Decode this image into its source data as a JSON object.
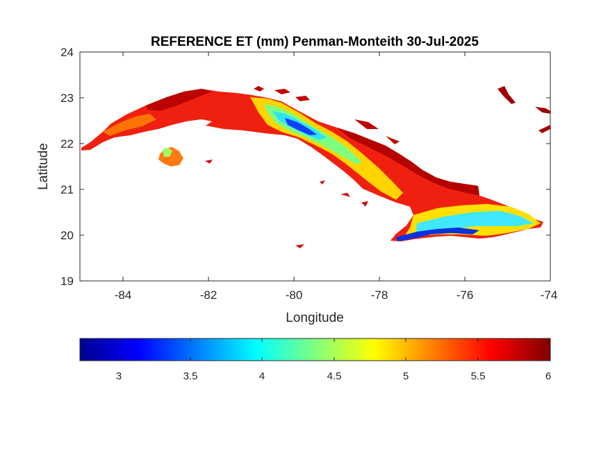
{
  "map": {
    "title": "REFERENCE ET (mm) Penman-Monteith 30-Jul-2025",
    "xlabel": "Longitude",
    "ylabel": "Latitude",
    "x_ticks": [
      "-84",
      "-82",
      "-80",
      "-78",
      "-76",
      "-74"
    ],
    "y_ticks": [
      "24",
      "23",
      "22",
      "21",
      "20",
      "19"
    ],
    "xlim": [
      -85,
      -74
    ],
    "ylim": [
      19,
      24
    ],
    "colorbar_ticks": [
      "3",
      "3.5",
      "4",
      "4.5",
      "5",
      "5.5",
      "6"
    ],
    "colorbar_range": [
      2.73,
      6.0
    ],
    "colormap": "jet"
  },
  "chart_data": {
    "type": "heatmap",
    "title": "REFERENCE ET (mm) Penman-Monteith 30-Jul-2025",
    "xlabel": "Longitude",
    "ylabel": "Latitude",
    "xlim": [
      -85,
      -74
    ],
    "ylim": [
      19,
      24
    ],
    "color_range": [
      2.73,
      6.0
    ],
    "colormap": "jet",
    "grid": false
  }
}
